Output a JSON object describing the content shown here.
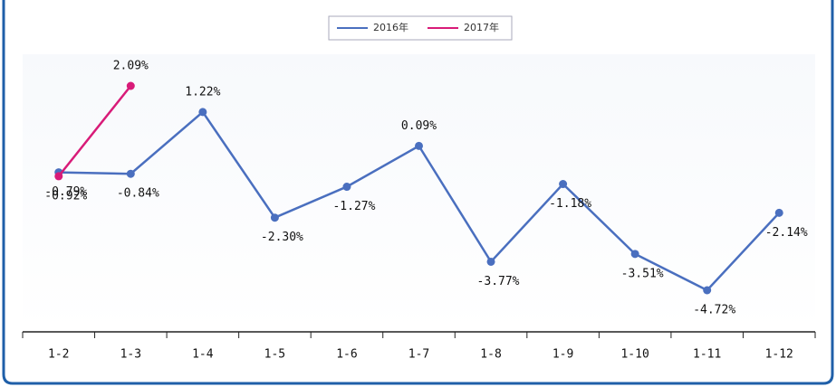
{
  "chart_data": {
    "type": "line",
    "categories": [
      "1-2",
      "1-3",
      "1-4",
      "1-5",
      "1-6",
      "1-7",
      "1-8",
      "1-9",
      "1-10",
      "1-11",
      "1-12"
    ],
    "series": [
      {
        "name": "2016年",
        "color": "#4a6fbf",
        "values": [
          -0.79,
          -0.84,
          1.22,
          -2.3,
          -1.27,
          0.09,
          -3.77,
          -1.18,
          -3.51,
          -4.72,
          -2.14
        ],
        "value_labels": [
          "-0.79%",
          "-0.84%",
          "1.22%",
          "-2.30%",
          "-1.27%",
          "0.09%",
          "-3.77%",
          "-1.18%",
          "-3.51%",
          "-4.72%",
          "-2.14%"
        ]
      },
      {
        "name": "2017年",
        "color": "#d81b78",
        "values": [
          -0.92,
          2.09,
          null,
          null,
          null,
          null,
          null,
          null,
          null,
          null,
          null
        ],
        "value_labels": [
          "-0.92%",
          "2.09%",
          null,
          null,
          null,
          null,
          null,
          null,
          null,
          null,
          null
        ]
      }
    ],
    "legend": "top"
  }
}
